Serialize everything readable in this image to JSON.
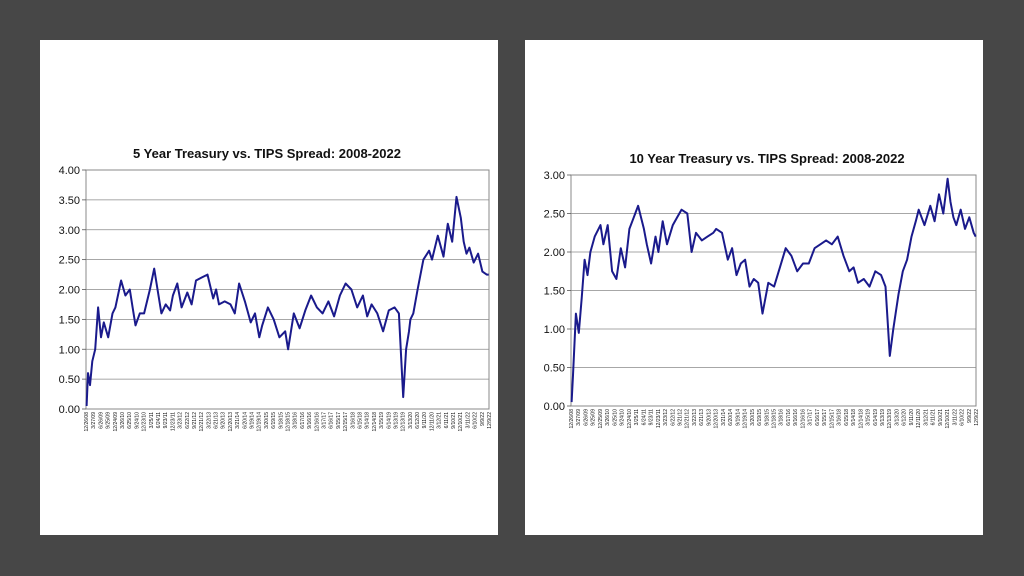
{
  "chart_data": [
    {
      "type": "line",
      "title": "5 Year Treasury vs. TIPS Spread: 2008-2022",
      "xlabel": "",
      "ylabel": "",
      "ylim": [
        0,
        4
      ],
      "yticks": [
        "0.00",
        "0.50",
        "1.00",
        "1.50",
        "2.00",
        "2.50",
        "3.00",
        "3.50",
        "4.00"
      ],
      "grid": true,
      "legend": "none",
      "line_color": "#1a1a8c",
      "x_tick_labels": [
        "12/26/08",
        "3/27/09",
        "6/26/09",
        "9/25/09",
        "12/24/09",
        "3/26/10",
        "6/25/10",
        "9/24/10",
        "12/23/10",
        "3/25/11",
        "6/24/11",
        "9/23/11",
        "12/23/11",
        "3/23/12",
        "6/22/12",
        "9/21/12",
        "12/21/12",
        "3/22/13",
        "6/21/13",
        "9/20/13",
        "12/20/13",
        "3/21/14",
        "6/20/14",
        "9/19/14",
        "12/19/14",
        "3/20/15",
        "6/19/15",
        "9/18/15",
        "12/18/15",
        "3/18/16",
        "6/17/16",
        "9/16/16",
        "12/16/16",
        "3/17/17",
        "6/16/17",
        "9/15/17",
        "12/15/17",
        "3/16/18",
        "6/15/18",
        "9/14/18",
        "12/14/18",
        "3/15/19",
        "6/14/19",
        "9/13/19",
        "12/13/19",
        "3/13/20",
        "6/12/20",
        "9/11/20",
        "12/11/20",
        "3/12/21",
        "6/11/21",
        "9/10/21",
        "12/10/21",
        "3/11/22",
        "6/10/22",
        "9/9/22",
        "12/9/22"
      ],
      "x": [
        2009.0,
        2009.05,
        2009.12,
        2009.2,
        2009.3,
        2009.4,
        2009.5,
        2009.6,
        2009.75,
        2009.9,
        2010.0,
        2010.2,
        2010.35,
        2010.5,
        2010.6,
        2010.7,
        2010.85,
        2011.0,
        2011.2,
        2011.35,
        2011.5,
        2011.6,
        2011.75,
        2011.9,
        2012.0,
        2012.15,
        2012.3,
        2012.5,
        2012.65,
        2012.8,
        2013.0,
        2013.2,
        2013.4,
        2013.5,
        2013.6,
        2013.8,
        2014.0,
        2014.15,
        2014.3,
        2014.5,
        2014.7,
        2014.85,
        2015.0,
        2015.1,
        2015.3,
        2015.5,
        2015.7,
        2015.9,
        2016.0,
        2016.2,
        2016.4,
        2016.6,
        2016.8,
        2017.0,
        2017.2,
        2017.4,
        2017.6,
        2017.8,
        2018.0,
        2018.2,
        2018.4,
        2018.6,
        2018.75,
        2018.9,
        2019.1,
        2019.3,
        2019.5,
        2019.7,
        2019.85,
        2020.0,
        2020.1,
        2020.2,
        2020.25,
        2020.35,
        2020.5,
        2020.7,
        2020.9,
        2021.0,
        2021.2,
        2021.4,
        2021.55,
        2021.7,
        2021.85,
        2022.0,
        2022.1,
        2022.2,
        2022.3,
        2022.45,
        2022.6,
        2022.75,
        2022.9,
        2022.97
      ],
      "y": [
        0.05,
        0.6,
        0.4,
        0.8,
        1.0,
        1.7,
        1.2,
        1.45,
        1.2,
        1.6,
        1.7,
        2.15,
        1.9,
        2.0,
        1.7,
        1.4,
        1.6,
        1.6,
        2.0,
        2.35,
        1.9,
        1.6,
        1.75,
        1.65,
        1.9,
        2.1,
        1.7,
        1.95,
        1.75,
        2.15,
        2.2,
        2.25,
        1.85,
        2.0,
        1.75,
        1.8,
        1.75,
        1.6,
        2.1,
        1.8,
        1.45,
        1.6,
        1.2,
        1.4,
        1.7,
        1.5,
        1.2,
        1.3,
        1.0,
        1.6,
        1.35,
        1.65,
        1.9,
        1.7,
        1.6,
        1.8,
        1.55,
        1.9,
        2.1,
        2.0,
        1.7,
        1.9,
        1.55,
        1.75,
        1.6,
        1.3,
        1.65,
        1.7,
        1.6,
        0.2,
        1.0,
        1.3,
        1.5,
        1.6,
        2.0,
        2.5,
        2.65,
        2.5,
        2.9,
        2.55,
        3.1,
        2.8,
        3.55,
        3.2,
        2.8,
        2.6,
        2.7,
        2.45,
        2.6,
        2.3,
        2.25,
        2.25
      ]
    },
    {
      "type": "line",
      "title": "10 Year Treasury vs. TIPS Spread: 2008-2022",
      "xlabel": "",
      "ylabel": "",
      "ylim": [
        0,
        3
      ],
      "yticks": [
        "0.00",
        "0.50",
        "1.00",
        "1.50",
        "2.00",
        "2.50",
        "3.00"
      ],
      "grid": true,
      "legend": "none",
      "line_color": "#1a1a8c",
      "x_tick_labels": [
        "12/26/08",
        "3/27/09",
        "6/26/09",
        "9/25/09",
        "12/25/09",
        "3/26/10",
        "6/25/10",
        "9/24/10",
        "12/24/10",
        "3/25/11",
        "6/24/11",
        "9/23/11",
        "12/23/11",
        "3/23/12",
        "6/22/12",
        "9/21/12",
        "12/21/12",
        "3/22/13",
        "6/21/13",
        "9/20/13",
        "12/20/13",
        "3/21/14",
        "6/20/14",
        "9/19/14",
        "12/19/14",
        "3/20/15",
        "6/19/15",
        "9/18/15",
        "12/18/15",
        "3/18/16",
        "6/17/16",
        "9/16/16",
        "12/16/16",
        "3/17/17",
        "6/16/17",
        "9/15/17",
        "12/15/17",
        "3/16/18",
        "6/15/18",
        "9/14/18",
        "12/14/18",
        "3/15/19",
        "6/14/19",
        "9/13/19",
        "12/13/19",
        "3/13/20",
        "6/12/20",
        "9/11/20",
        "12/11/20",
        "3/12/21",
        "6/11/21",
        "9/10/21",
        "12/10/21",
        "3/11/22",
        "6/10/22",
        "9/9/22",
        "12/9/22"
      ],
      "x": [
        2009.0,
        2009.05,
        2009.15,
        2009.25,
        2009.35,
        2009.45,
        2009.55,
        2009.65,
        2009.8,
        2010.0,
        2010.1,
        2010.25,
        2010.4,
        2010.55,
        2010.7,
        2010.85,
        2011.0,
        2011.15,
        2011.3,
        2011.5,
        2011.6,
        2011.75,
        2011.9,
        2012.0,
        2012.15,
        2012.3,
        2012.5,
        2012.65,
        2012.8,
        2013.0,
        2013.15,
        2013.3,
        2013.5,
        2013.7,
        2013.9,
        2014.0,
        2014.2,
        2014.4,
        2014.55,
        2014.7,
        2014.85,
        2015.0,
        2015.15,
        2015.3,
        2015.45,
        2015.6,
        2015.8,
        2016.0,
        2016.2,
        2016.4,
        2016.6,
        2016.8,
        2017.0,
        2017.2,
        2017.4,
        2017.6,
        2017.8,
        2018.0,
        2018.2,
        2018.4,
        2018.6,
        2018.75,
        2018.9,
        2019.1,
        2019.3,
        2019.5,
        2019.7,
        2019.85,
        2020.0,
        2020.12,
        2020.2,
        2020.3,
        2020.45,
        2020.6,
        2020.75,
        2020.9,
        2021.0,
        2021.2,
        2021.4,
        2021.55,
        2021.7,
        2021.85,
        2022.0,
        2022.1,
        2022.2,
        2022.3,
        2022.45,
        2022.6,
        2022.75,
        2022.9,
        2022.97
      ],
      "y": [
        0.05,
        0.4,
        1.2,
        0.95,
        1.4,
        1.9,
        1.7,
        2.0,
        2.2,
        2.35,
        2.1,
        2.35,
        1.75,
        1.65,
        2.05,
        1.8,
        2.3,
        2.45,
        2.6,
        2.3,
        2.1,
        1.85,
        2.2,
        2.0,
        2.4,
        2.1,
        2.35,
        2.45,
        2.55,
        2.5,
        2.0,
        2.25,
        2.15,
        2.2,
        2.25,
        2.3,
        2.25,
        1.9,
        2.05,
        1.7,
        1.85,
        1.9,
        1.55,
        1.65,
        1.6,
        1.2,
        1.6,
        1.55,
        1.8,
        2.05,
        1.95,
        1.75,
        1.85,
        1.85,
        2.05,
        2.1,
        2.15,
        2.1,
        2.2,
        1.95,
        1.75,
        1.8,
        1.6,
        1.65,
        1.55,
        1.75,
        1.7,
        1.55,
        0.65,
        1.0,
        1.2,
        1.45,
        1.75,
        1.9,
        2.2,
        2.4,
        2.55,
        2.35,
        2.6,
        2.4,
        2.75,
        2.5,
        2.95,
        2.65,
        2.45,
        2.35,
        2.55,
        2.3,
        2.45,
        2.25,
        2.2
      ]
    }
  ]
}
